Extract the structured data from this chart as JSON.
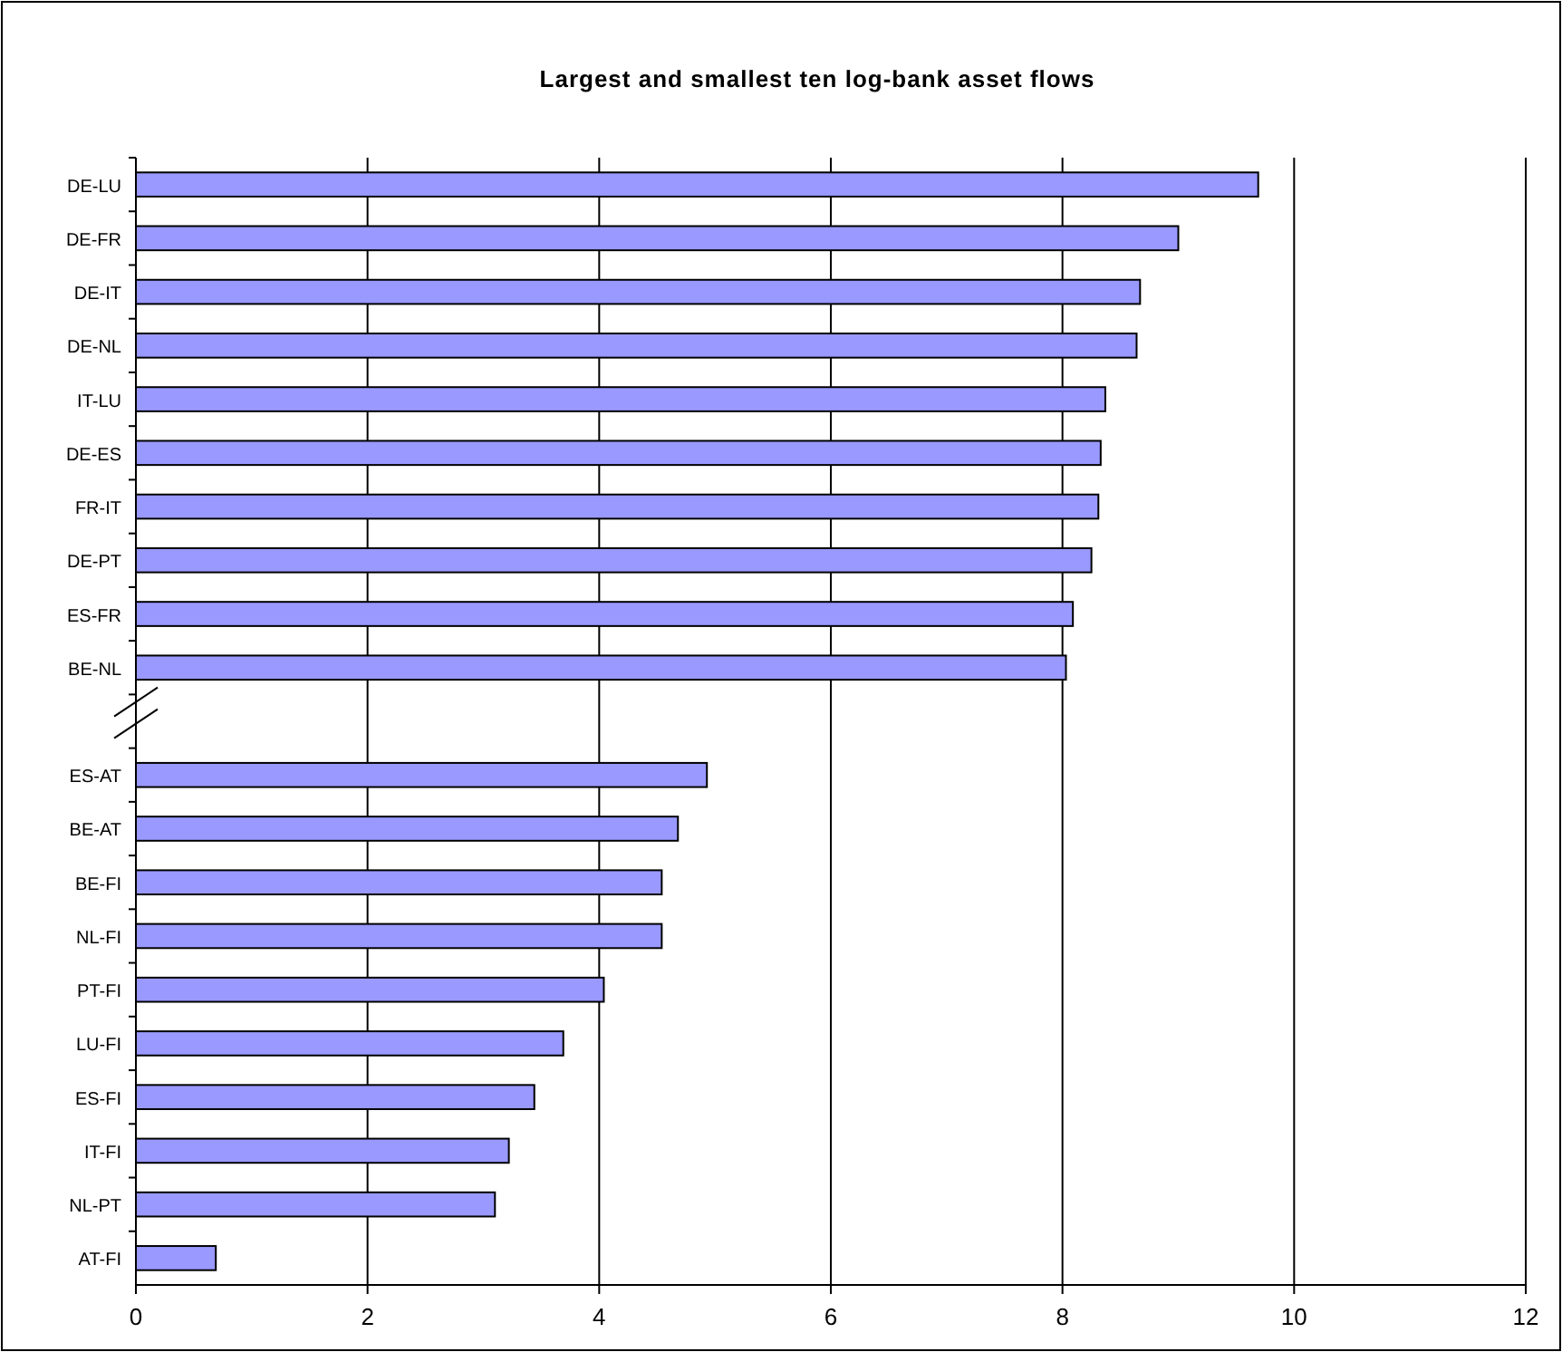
{
  "chart_data": {
    "type": "bar",
    "orientation": "horizontal",
    "title": "Largest and smallest ten log-bank asset flows",
    "categories": [
      "DE-LU",
      "DE-FR",
      "DE-IT",
      "DE-NL",
      "IT-LU",
      "DE-ES",
      "FR-IT",
      "DE-PT",
      "ES-FR",
      "BE-NL",
      null,
      "ES-AT",
      "BE-AT",
      "BE-FI",
      "NL-FI",
      "PT-FI",
      "LU-FI",
      "ES-FI",
      "IT-FI",
      "NL-PT",
      "AT-FI"
    ],
    "values": [
      9.69,
      9.0,
      8.67,
      8.64,
      8.37,
      8.33,
      8.31,
      8.25,
      8.09,
      8.03,
      null,
      4.93,
      4.68,
      4.54,
      4.54,
      4.04,
      3.69,
      3.44,
      3.22,
      3.1,
      0.69
    ],
    "color": "#9999ff",
    "xlim": [
      0,
      12
    ],
    "xticks": [
      0,
      2,
      4,
      6,
      8,
      10,
      12
    ],
    "grid": "x"
  }
}
